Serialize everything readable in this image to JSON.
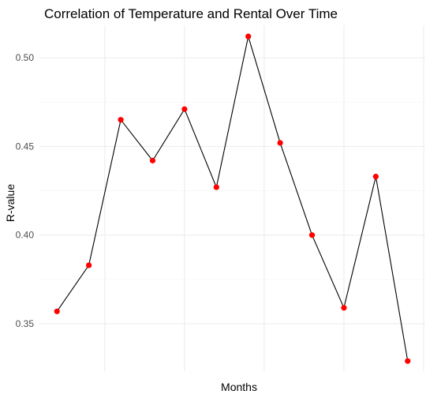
{
  "chart_data": {
    "type": "line",
    "title": "Correlation of Temperature and Rental Over Time",
    "xlabel": "Months",
    "ylabel": "R-value",
    "x": [
      1,
      2,
      3,
      4,
      5,
      6,
      7,
      8,
      9,
      10,
      11,
      12
    ],
    "series": [
      {
        "values": [
          0.357,
          0.383,
          0.465,
          0.442,
          0.471,
          0.427,
          0.512,
          0.452,
          0.4,
          0.359,
          0.433,
          0.329
        ],
        "line_color": "#000000",
        "point_color": "#ff0000"
      }
    ],
    "yticks": [
      "0.35",
      "0.40",
      "0.45",
      "0.50"
    ],
    "ylim": [
      0.3233,
      0.5183
    ],
    "xlim": [
      0.45,
      12.55
    ],
    "x_gridlines": [
      2.5,
      5,
      7.5,
      10,
      12.5
    ],
    "grid": true,
    "legend": "none"
  }
}
